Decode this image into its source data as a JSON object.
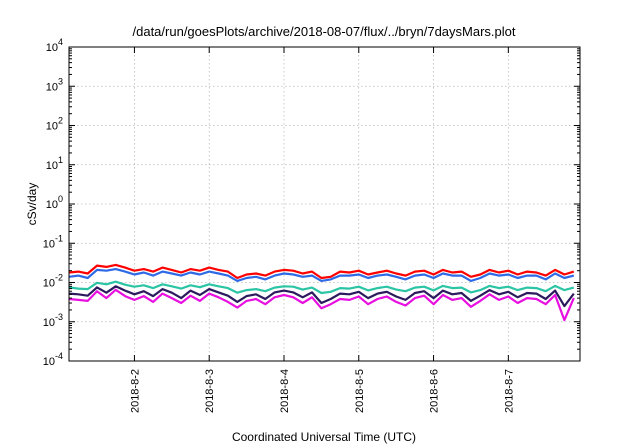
{
  "chart_data": {
    "type": "line",
    "title": "/data/run/goesPlots/archive/2018-08-07/flux/../bryn/7daysMars.plot",
    "xlabel": "Coordinated Universal Time (UTC)",
    "ylabel": "cSv/day",
    "yscale": "log",
    "ylim": [
      0.0001,
      10000
    ],
    "y_ticks": [
      {
        "base": "10",
        "exp": "-4"
      },
      {
        "base": "10",
        "exp": "-3"
      },
      {
        "base": "10",
        "exp": "-2"
      },
      {
        "base": "10",
        "exp": "-1"
      },
      {
        "base": "10",
        "exp": "0"
      },
      {
        "base": "10",
        "exp": "1"
      },
      {
        "base": "10",
        "exp": "2"
      },
      {
        "base": "10",
        "exp": "3"
      },
      {
        "base": "10",
        "exp": "4"
      }
    ],
    "xlim": [
      "2018-08-01 03:00",
      "2018-08-07 23:00"
    ],
    "x_ticks": [
      "2018-8-2",
      "2018-8-3",
      "2018-8-4",
      "2018-8-5",
      "2018-8-6",
      "2018-8-7"
    ],
    "grid": true,
    "x_points": [
      "2018-08-01 03:00",
      "2018-08-01 06:00",
      "2018-08-01 09:00",
      "2018-08-01 12:00",
      "2018-08-01 15:00",
      "2018-08-01 18:00",
      "2018-08-01 21:00",
      "2018-08-02 00:00",
      "2018-08-02 03:00",
      "2018-08-02 06:00",
      "2018-08-02 09:00",
      "2018-08-02 12:00",
      "2018-08-02 15:00",
      "2018-08-02 18:00",
      "2018-08-02 21:00",
      "2018-08-03 00:00",
      "2018-08-03 03:00",
      "2018-08-03 06:00",
      "2018-08-03 09:00",
      "2018-08-03 12:00",
      "2018-08-03 15:00",
      "2018-08-03 18:00",
      "2018-08-03 21:00",
      "2018-08-04 00:00",
      "2018-08-04 03:00",
      "2018-08-04 06:00",
      "2018-08-04 09:00",
      "2018-08-04 12:00",
      "2018-08-04 15:00",
      "2018-08-04 18:00",
      "2018-08-04 21:00",
      "2018-08-05 00:00",
      "2018-08-05 03:00",
      "2018-08-05 06:00",
      "2018-08-05 09:00",
      "2018-08-05 12:00",
      "2018-08-05 15:00",
      "2018-08-05 18:00",
      "2018-08-05 21:00",
      "2018-08-06 00:00",
      "2018-08-06 03:00",
      "2018-08-06 06:00",
      "2018-08-06 09:00",
      "2018-08-06 12:00",
      "2018-08-06 15:00",
      "2018-08-06 18:00",
      "2018-08-06 21:00",
      "2018-08-07 00:00",
      "2018-08-07 03:00",
      "2018-08-07 06:00",
      "2018-08-07 09:00",
      "2018-08-07 12:00",
      "2018-08-07 15:00",
      "2018-08-07 18:00",
      "2018-08-07 21:00"
    ],
    "series": [
      {
        "color": "#ff0000",
        "values": [
          0.018,
          0.019,
          0.017,
          0.027,
          0.025,
          0.028,
          0.024,
          0.02,
          0.022,
          0.019,
          0.024,
          0.021,
          0.018,
          0.022,
          0.02,
          0.024,
          0.021,
          0.019,
          0.013,
          0.016,
          0.017,
          0.015,
          0.019,
          0.021,
          0.02,
          0.017,
          0.019,
          0.013,
          0.014,
          0.019,
          0.018,
          0.02,
          0.016,
          0.018,
          0.02,
          0.017,
          0.015,
          0.019,
          0.02,
          0.016,
          0.021,
          0.018,
          0.019,
          0.014,
          0.016,
          0.021,
          0.018,
          0.02,
          0.016,
          0.019,
          0.018,
          0.015,
          0.021,
          0.016,
          0.019
        ]
      },
      {
        "color": "#2e6ae6",
        "values": [
          0.014,
          0.015,
          0.013,
          0.021,
          0.02,
          0.022,
          0.019,
          0.016,
          0.018,
          0.015,
          0.019,
          0.017,
          0.015,
          0.018,
          0.016,
          0.019,
          0.017,
          0.015,
          0.011,
          0.013,
          0.014,
          0.012,
          0.015,
          0.017,
          0.016,
          0.014,
          0.015,
          0.011,
          0.012,
          0.015,
          0.015,
          0.016,
          0.013,
          0.015,
          0.016,
          0.014,
          0.012,
          0.015,
          0.016,
          0.013,
          0.017,
          0.015,
          0.015,
          0.011,
          0.013,
          0.017,
          0.015,
          0.016,
          0.013,
          0.015,
          0.015,
          0.012,
          0.017,
          0.013,
          0.015
        ]
      },
      {
        "color": "#2bc5a5",
        "values": [
          0.0075,
          0.007,
          0.0068,
          0.0098,
          0.009,
          0.0105,
          0.0088,
          0.0078,
          0.0085,
          0.0072,
          0.009,
          0.008,
          0.007,
          0.0085,
          0.0076,
          0.009,
          0.008,
          0.0072,
          0.0055,
          0.0064,
          0.0068,
          0.006,
          0.0074,
          0.008,
          0.0078,
          0.0066,
          0.0074,
          0.0054,
          0.0058,
          0.0072,
          0.007,
          0.0078,
          0.0063,
          0.0072,
          0.0078,
          0.0066,
          0.006,
          0.0074,
          0.0078,
          0.0063,
          0.0082,
          0.0072,
          0.0074,
          0.0056,
          0.0064,
          0.0082,
          0.0072,
          0.0078,
          0.0064,
          0.0074,
          0.0072,
          0.006,
          0.0082,
          0.0064,
          0.0074
        ]
      },
      {
        "color": "#2c1a5e",
        "values": [
          0.0052,
          0.005,
          0.0046,
          0.0075,
          0.0055,
          0.008,
          0.0062,
          0.005,
          0.006,
          0.0045,
          0.0068,
          0.0055,
          0.004,
          0.0062,
          0.0048,
          0.0068,
          0.0056,
          0.0046,
          0.0032,
          0.0045,
          0.005,
          0.0038,
          0.0056,
          0.0062,
          0.0056,
          0.0042,
          0.0056,
          0.003,
          0.0038,
          0.0052,
          0.005,
          0.0058,
          0.004,
          0.0052,
          0.0058,
          0.0044,
          0.0036,
          0.0054,
          0.006,
          0.004,
          0.0062,
          0.005,
          0.0054,
          0.0034,
          0.0046,
          0.0064,
          0.005,
          0.0058,
          0.0042,
          0.0054,
          0.0052,
          0.0038,
          0.0062,
          0.0025,
          0.0052
        ]
      },
      {
        "color": "#e810e0",
        "values": [
          0.0038,
          0.0036,
          0.0034,
          0.006,
          0.004,
          0.0065,
          0.0045,
          0.0036,
          0.0045,
          0.0032,
          0.0052,
          0.004,
          0.003,
          0.0046,
          0.0034,
          0.0052,
          0.0042,
          0.0032,
          0.0023,
          0.0034,
          0.0038,
          0.0028,
          0.0042,
          0.0048,
          0.0042,
          0.003,
          0.0042,
          0.0022,
          0.0028,
          0.0038,
          0.0036,
          0.0044,
          0.0028,
          0.0038,
          0.0044,
          0.0032,
          0.0026,
          0.004,
          0.0046,
          0.0028,
          0.0048,
          0.0036,
          0.004,
          0.0024,
          0.0034,
          0.005,
          0.0036,
          0.0044,
          0.003,
          0.004,
          0.0038,
          0.0028,
          0.0048,
          0.0011,
          0.004
        ]
      }
    ]
  }
}
